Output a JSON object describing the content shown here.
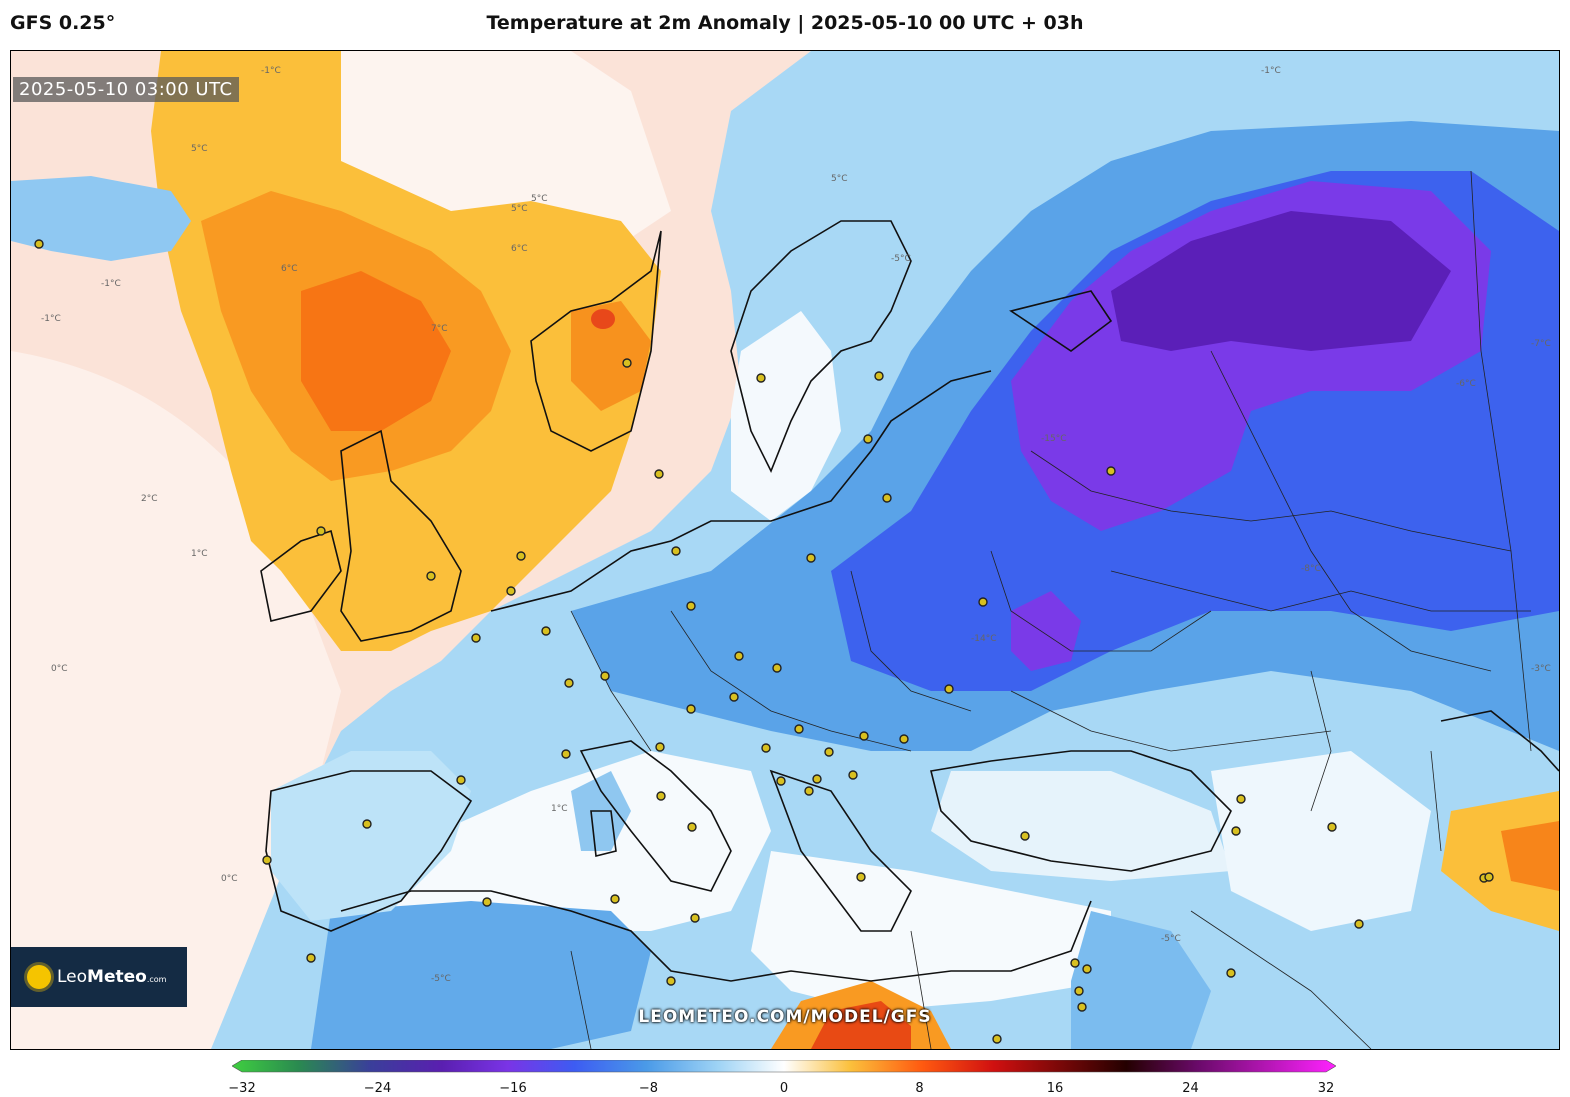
{
  "header": {
    "model": "GFS 0.25°",
    "title": "Temperature at 2m Anomaly | 2025-05-10 00 UTC + 03h"
  },
  "map": {
    "timestamp": "2025-05-10 03:00 UTC",
    "watermark": "LEOMETEO.COM/MODEL/GFS",
    "logo": {
      "brand_light": "Leo",
      "brand_bold": "Meteo",
      "suffix": ".com"
    },
    "isotherm_labels": [
      "-1°C",
      "5°C",
      "6°C",
      "7°C",
      "-1°C",
      "5°C",
      "5°C",
      "-5°C",
      "-7°C",
      "-14°C",
      "-15°C",
      "-8°C",
      "-5°C",
      "-6°C",
      "0°C",
      "-1°C",
      "2°C",
      "1°C",
      "-3°C",
      "1°C",
      "0°C",
      "-5°C",
      "5°C",
      "6°C",
      "-1°C"
    ]
  },
  "colorbar": {
    "min": -32,
    "max": 32,
    "ticks": [
      "−32",
      "−24",
      "−16",
      "−8",
      "0",
      "8",
      "16",
      "24",
      "32"
    ],
    "colors": {
      "neg32": "#3fcf40",
      "neg24": "#3a3f9a",
      "neg20": "#5a1fb0",
      "neg16": "#7a34e6",
      "neg12": "#3d5cf2",
      "neg8": "#4a9ae8",
      "neg4": "#9ed3f5",
      "zero": "#ffffff",
      "pos4": "#fbc03c",
      "pos8": "#ff5a10",
      "pos12": "#d01010",
      "pos16": "#7a0808",
      "pos20": "#240000",
      "pos24": "#6a0a6a",
      "pos32": "#ff22ff"
    }
  }
}
